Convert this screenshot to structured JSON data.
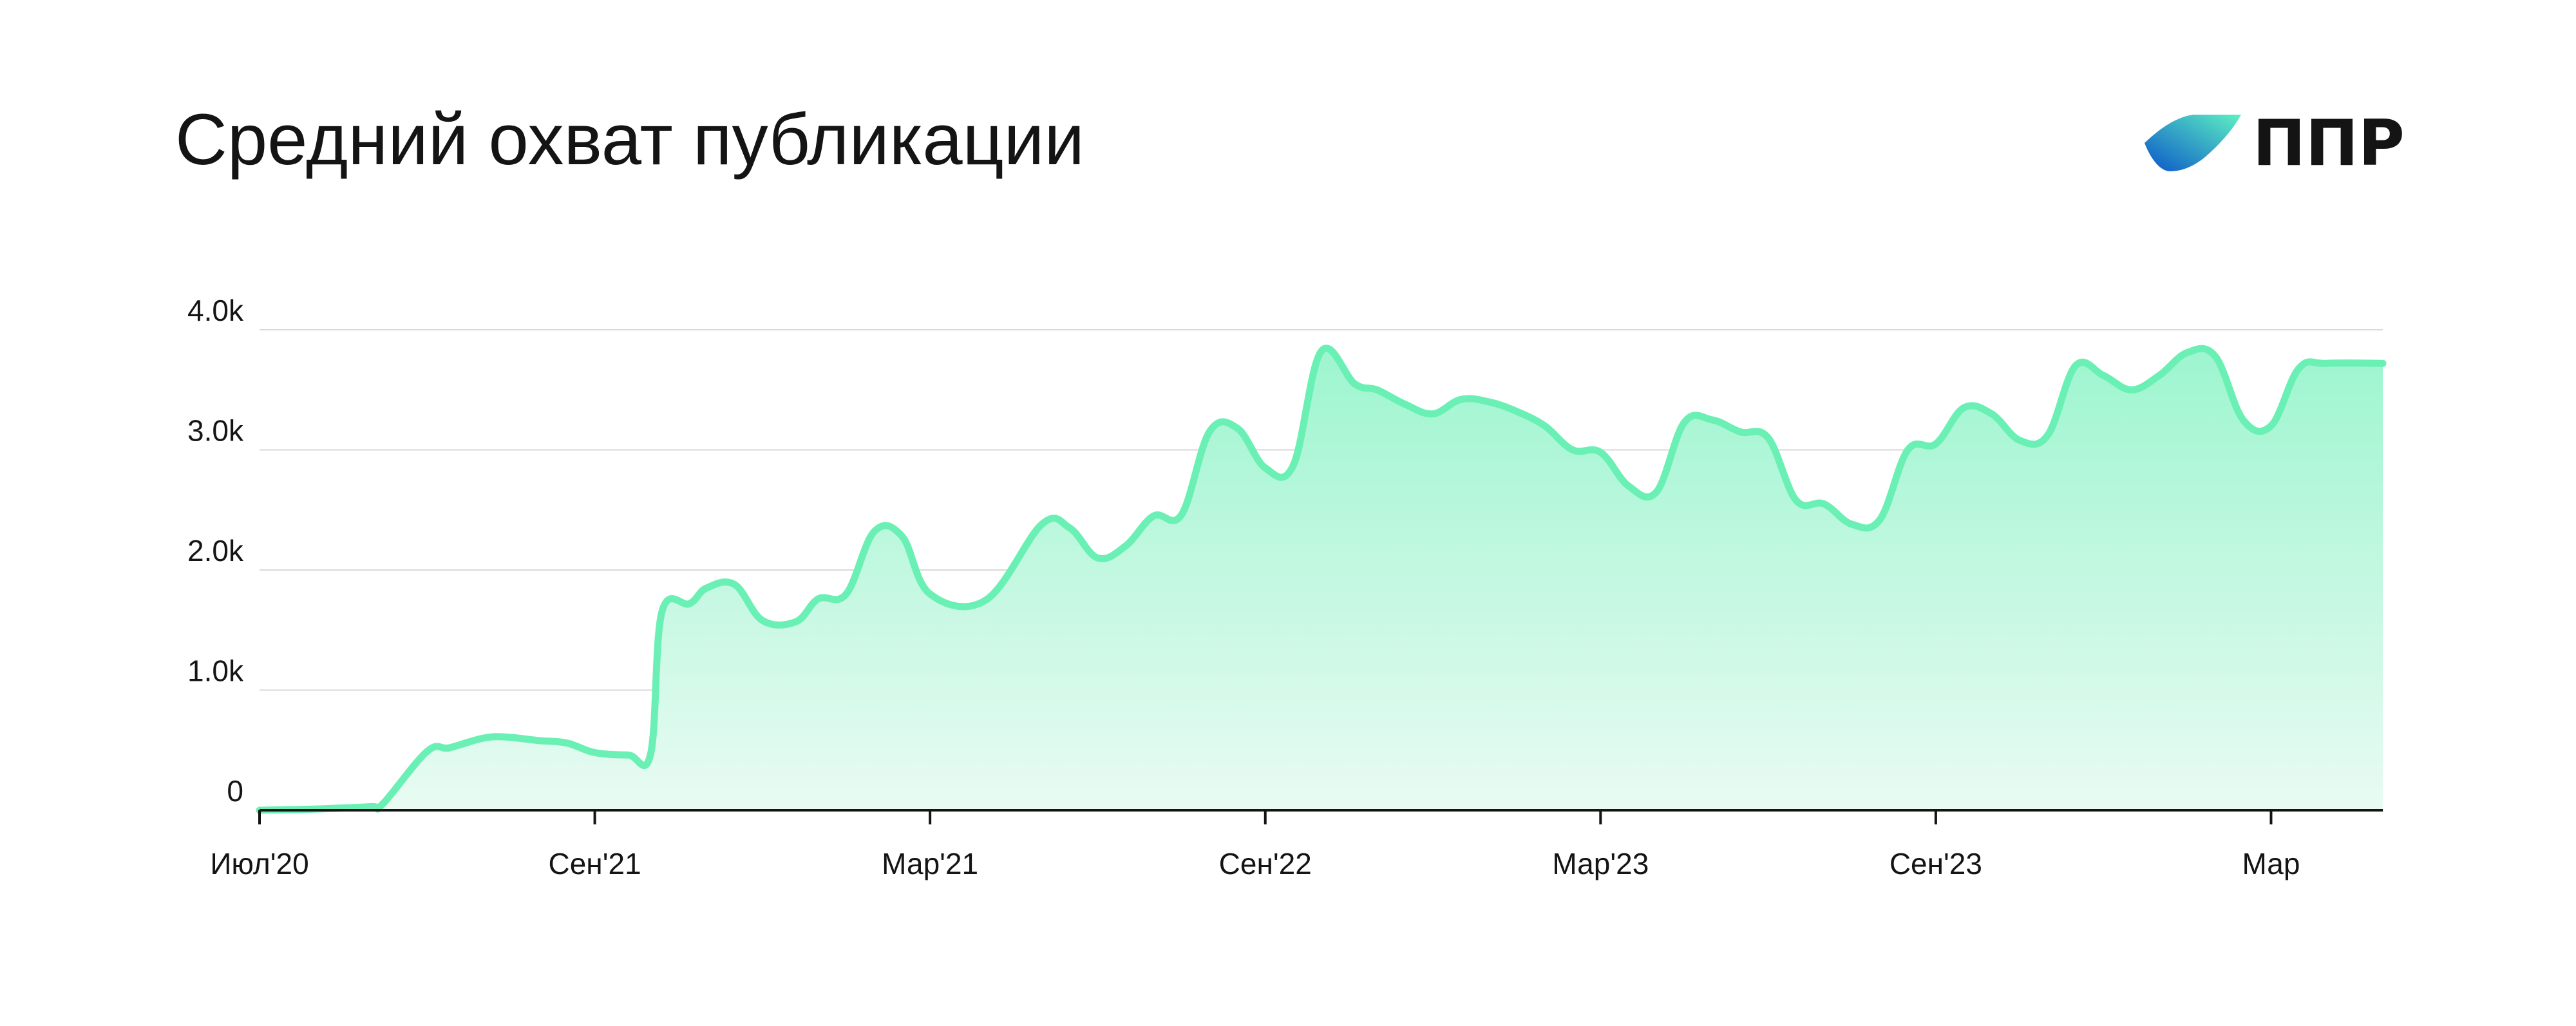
{
  "header": {
    "title": "Средний охват публикации",
    "brand": "ППР"
  },
  "colors": {
    "line": "#6af0b4",
    "fill_top": "#9df5cf",
    "fill_bottom": "#e9fbf3",
    "grid": "#d9d9d9",
    "axis": "#141414",
    "logo_gradient_start": "#5ef0c3",
    "logo_gradient_end": "#0a56c8"
  },
  "chart_data": {
    "type": "area",
    "title": "Средний охват публикации",
    "xlabel": "",
    "ylabel": "",
    "ylim": [
      0,
      4000
    ],
    "yticks": [
      0,
      1000,
      2000,
      3000,
      4000
    ],
    "ytick_labels": [
      "0",
      "1.0k",
      "2.0k",
      "3.0k",
      "4.0k"
    ],
    "xticks": [
      0,
      6,
      12,
      18,
      24,
      30,
      36
    ],
    "xtick_labels": [
      "Июл'20",
      "Сен'21",
      "Мар'21",
      "Сен'22",
      "Мар'23",
      "Сен'23",
      "Мар"
    ],
    "xlim": [
      0,
      38
    ],
    "grid": true,
    "x": [
      0,
      1,
      2,
      2.2,
      3,
      3.4,
      4,
      4.4,
      5,
      5.5,
      6,
      6.6,
      7,
      7.2,
      7.7,
      8,
      8.5,
      9,
      9.6,
      10,
      10.5,
      11,
      11.5,
      12,
      13,
      14,
      14.5,
      15,
      15.5,
      16,
      16.5,
      17,
      17.5,
      18,
      18.5,
      19,
      19.6,
      20,
      20.5,
      21,
      21.5,
      22,
      22.5,
      23,
      23.5,
      24,
      24.5,
      25,
      25.5,
      26,
      26.5,
      27,
      27.5,
      28,
      28.5,
      29,
      29.5,
      30,
      30.5,
      31,
      31.5,
      32,
      32.5,
      33,
      33.5,
      34,
      34.5,
      35,
      35.5,
      36,
      36.5,
      37,
      38
    ],
    "values": [
      0,
      10,
      30,
      50,
      490,
      520,
      600,
      610,
      580,
      560,
      480,
      460,
      470,
      1650,
      1720,
      1850,
      1880,
      1580,
      1570,
      1760,
      1800,
      2320,
      2280,
      1800,
      1750,
      2380,
      2350,
      2100,
      2200,
      2450,
      2460,
      3150,
      3180,
      2850,
      2870,
      3820,
      3550,
      3500,
      3380,
      3300,
      3420,
      3400,
      3320,
      3200,
      3000,
      2980,
      2700,
      2650,
      3230,
      3250,
      3150,
      3100,
      2580,
      2550,
      2380,
      2420,
      3000,
      3050,
      3350,
      3300,
      3080,
      3120,
      3700,
      3620,
      3500,
      3620,
      3810,
      3780,
      3250,
      3200,
      3680,
      3720,
      3720
    ]
  }
}
